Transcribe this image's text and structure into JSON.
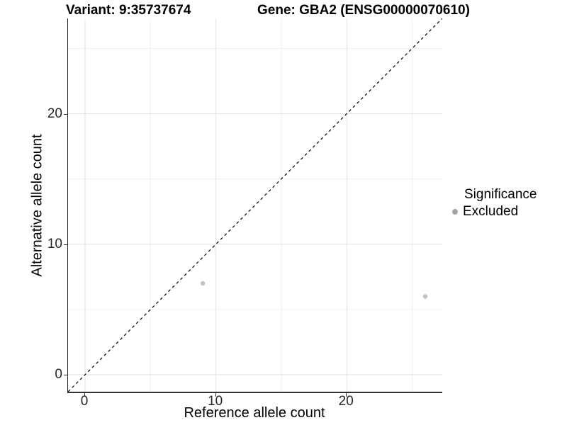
{
  "chart_data": {
    "type": "scatter",
    "title_left": "Variant: 9:35737674",
    "title_right": "Gene: GBA2 (ENSG00000070610)",
    "xlabel": "Reference allele count",
    "ylabel": "Alternative allele count",
    "xlim": [
      -1.3,
      27.3
    ],
    "ylim": [
      -1.3,
      27.3
    ],
    "x_ticks": [
      0,
      10,
      20
    ],
    "y_ticks": [
      0,
      10,
      20
    ],
    "x_minor_ticks": [
      5,
      15,
      25
    ],
    "y_minor_ticks": [
      5,
      15,
      25
    ],
    "grid": "major+minor",
    "identity_line": {
      "style": "dashed",
      "from": [
        -1.3,
        -1.3
      ],
      "to": [
        27.3,
        27.3
      ],
      "color": "#111111"
    },
    "series": [
      {
        "name": "Excluded",
        "color": "#c2c2c2",
        "points": [
          {
            "x": 9,
            "y": 7
          },
          {
            "x": 26,
            "y": 6
          }
        ]
      }
    ],
    "legend": {
      "title": "Significance",
      "position": "right",
      "entries": [
        {
          "label": "Excluded",
          "color": "#a2a2a2"
        }
      ]
    },
    "colors": {
      "grid_major": "#e3e3e3",
      "grid_minor": "#f0f0f0",
      "axis_line": "#1f1f1f",
      "tick_text": "#262626"
    }
  }
}
